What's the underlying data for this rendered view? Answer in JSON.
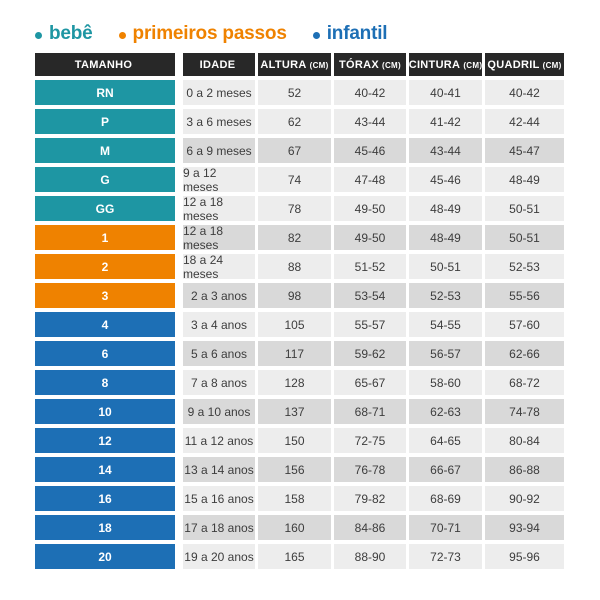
{
  "colors": {
    "bebe": "#1e96a3",
    "primeiros_passos": "#ef8200",
    "infantil": "#1d6fb5",
    "header_bg": "#282828",
    "row_light": "#ededed",
    "row_dark": "#d9d9d9"
  },
  "legend": {
    "items": [
      {
        "label": "bebê",
        "group": "bebe"
      },
      {
        "label": "primeiros passos",
        "group": "primeiros-passos"
      },
      {
        "label": "infantil",
        "group": "infantil"
      }
    ]
  },
  "chart_data": {
    "type": "table",
    "title": "",
    "legend_entries": [
      "bebê",
      "primeiros passos",
      "infantil"
    ],
    "columns": [
      {
        "label": "TAMANHO",
        "unit": ""
      },
      {
        "label": "IDADE",
        "unit": ""
      },
      {
        "label": "ALTURA",
        "unit": "(CM)"
      },
      {
        "label": "TÓRAX",
        "unit": "(CM)"
      },
      {
        "label": "CINTURA",
        "unit": "(CM)"
      },
      {
        "label": "QUADRIL",
        "unit": "(CM)"
      }
    ],
    "rows": [
      {
        "size": "RN",
        "age": "0 a 2 meses",
        "height": "52",
        "chest": "40-42",
        "waist": "40-41",
        "hip": "40-42",
        "group": "bebe",
        "shade": "light"
      },
      {
        "size": "P",
        "age": "3 a 6 meses",
        "height": "62",
        "chest": "43-44",
        "waist": "41-42",
        "hip": "42-44",
        "group": "bebe",
        "shade": "light"
      },
      {
        "size": "M",
        "age": "6 a 9 meses",
        "height": "67",
        "chest": "45-46",
        "waist": "43-44",
        "hip": "45-47",
        "group": "bebe",
        "shade": "dark"
      },
      {
        "size": "G",
        "age": "9 a 12 meses",
        "height": "74",
        "chest": "47-48",
        "waist": "45-46",
        "hip": "48-49",
        "group": "bebe",
        "shade": "light"
      },
      {
        "size": "GG",
        "age": "12 a 18 meses",
        "height": "78",
        "chest": "49-50",
        "waist": "48-49",
        "hip": "50-51",
        "group": "bebe",
        "shade": "light"
      },
      {
        "size": "1",
        "age": "12 a 18 meses",
        "height": "82",
        "chest": "49-50",
        "waist": "48-49",
        "hip": "50-51",
        "group": "primeiros-passos",
        "shade": "dark"
      },
      {
        "size": "2",
        "age": "18 a 24 meses",
        "height": "88",
        "chest": "51-52",
        "waist": "50-51",
        "hip": "52-53",
        "group": "primeiros-passos",
        "shade": "light"
      },
      {
        "size": "3",
        "age": "2 a 3 anos",
        "height": "98",
        "chest": "53-54",
        "waist": "52-53",
        "hip": "55-56",
        "group": "primeiros-passos",
        "shade": "dark"
      },
      {
        "size": "4",
        "age": "3 a 4 anos",
        "height": "105",
        "chest": "55-57",
        "waist": "54-55",
        "hip": "57-60",
        "group": "infantil",
        "shade": "light"
      },
      {
        "size": "6",
        "age": "5 a 6 anos",
        "height": "117",
        "chest": "59-62",
        "waist": "56-57",
        "hip": "62-66",
        "group": "infantil",
        "shade": "dark"
      },
      {
        "size": "8",
        "age": "7 a 8 anos",
        "height": "128",
        "chest": "65-67",
        "waist": "58-60",
        "hip": "68-72",
        "group": "infantil",
        "shade": "light"
      },
      {
        "size": "10",
        "age": "9 a 10 anos",
        "height": "137",
        "chest": "68-71",
        "waist": "62-63",
        "hip": "74-78",
        "group": "infantil",
        "shade": "dark"
      },
      {
        "size": "12",
        "age": "11 a 12 anos",
        "height": "150",
        "chest": "72-75",
        "waist": "64-65",
        "hip": "80-84",
        "group": "infantil",
        "shade": "light"
      },
      {
        "size": "14",
        "age": "13 a 14 anos",
        "height": "156",
        "chest": "76-78",
        "waist": "66-67",
        "hip": "86-88",
        "group": "infantil",
        "shade": "dark"
      },
      {
        "size": "16",
        "age": "15 a 16 anos",
        "height": "158",
        "chest": "79-82",
        "waist": "68-69",
        "hip": "90-92",
        "group": "infantil",
        "shade": "light"
      },
      {
        "size": "18",
        "age": "17 a 18 anos",
        "height": "160",
        "chest": "84-86",
        "waist": "70-71",
        "hip": "93-94",
        "group": "infantil",
        "shade": "dark"
      },
      {
        "size": "20",
        "age": "19 a 20 anos",
        "height": "165",
        "chest": "88-90",
        "waist": "72-73",
        "hip": "95-96",
        "group": "infantil",
        "shade": "light"
      }
    ]
  }
}
